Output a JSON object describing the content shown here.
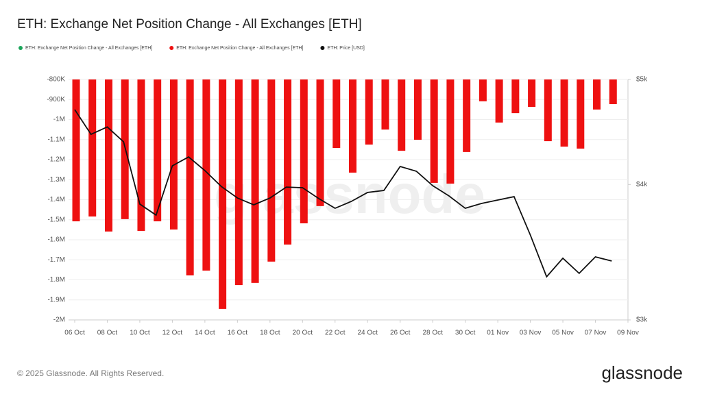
{
  "chart_data": {
    "type": "bar_line",
    "title": "ETH: Exchange Net Position Change - All Exchanges [ETH]",
    "categories": [
      "06 Oct",
      null,
      "08 Oct",
      null,
      "10 Oct",
      null,
      "12 Oct",
      null,
      "14 Oct",
      null,
      "16 Oct",
      null,
      "18 Oct",
      null,
      "20 Oct",
      null,
      "22 Oct",
      null,
      "24 Oct",
      null,
      "26 Oct",
      null,
      "28 Oct",
      null,
      "30 Oct",
      null,
      "01 Nov",
      null,
      "03 Nov",
      null,
      "05 Nov",
      null,
      "07 Nov",
      null,
      "09 Nov"
    ],
    "series": [
      {
        "name": "ETH: Exchange Net Position Change - All Exchanges [ETH]",
        "color": "#1aa55a",
        "type": "bar",
        "values": [
          null,
          null,
          null,
          null,
          null,
          null,
          null,
          null,
          null,
          null,
          null,
          null,
          null,
          null,
          null,
          null,
          null,
          null,
          null,
          null,
          null,
          null,
          null,
          null,
          null,
          null,
          null,
          null,
          null,
          null,
          null,
          null,
          null,
          null,
          null
        ]
      },
      {
        "name": "ETH: Exchange Net Position Change - All Exchanges [ETH]",
        "color": "#ee1111",
        "type": "bar",
        "values": [
          -1508000,
          -1484000,
          -1559000,
          -1497000,
          -1556000,
          -1508000,
          -1549000,
          -1778000,
          -1754000,
          -1945000,
          -1826000,
          -1815000,
          -1709000,
          -1624000,
          -1518000,
          -1432000,
          -1142000,
          -1265000,
          -1125000,
          -1050000,
          -1156000,
          -1101000,
          -1316000,
          -1320000,
          -1162000,
          -909000,
          -1015000,
          -968000,
          -937000,
          -1108000,
          -1135000,
          -1145000,
          -950000,
          -923000,
          null
        ]
      },
      {
        "name": "ETH: Price [USD]",
        "color": "#111111",
        "type": "line",
        "axis": "y2",
        "values": [
          4690,
          4450,
          4520,
          4380,
          3837,
          3748,
          4162,
          4241,
          4120,
          3984,
          3887,
          3831,
          3887,
          3978,
          3973,
          3882,
          3803,
          3859,
          3933,
          3950,
          4156,
          4114,
          3990,
          3904,
          3803,
          3842,
          3870,
          3898,
          3593,
          3288,
          3420,
          3312,
          3430,
          3400,
          null
        ]
      }
    ],
    "ylim": [
      -800000,
      -2000000
    ],
    "yticks": [
      {
        "value": -800000,
        "label": "-800K"
      },
      {
        "value": -900000,
        "label": "-900K"
      },
      {
        "value": -1000000,
        "label": "-1M"
      },
      {
        "value": -1100000,
        "label": "-1.1M"
      },
      {
        "value": -1200000,
        "label": "-1.2M"
      },
      {
        "value": -1300000,
        "label": "-1.3M"
      },
      {
        "value": -1400000,
        "label": "-1.4M"
      },
      {
        "value": -1500000,
        "label": "-1.5M"
      },
      {
        "value": -1600000,
        "label": "-1.6M"
      },
      {
        "value": -1700000,
        "label": "-1.7M"
      },
      {
        "value": -1800000,
        "label": "-1.8M"
      },
      {
        "value": -1900000,
        "label": "-1.9M"
      },
      {
        "value": -2000000,
        "label": "-2M"
      }
    ],
    "y2lim": [
      3000,
      5000
    ],
    "y2ticks": [
      {
        "value": 5000,
        "label": "$5k"
      },
      {
        "value": 4000,
        "label": "$4k"
      },
      {
        "value": 3000,
        "label": "$3k"
      }
    ],
    "y2log": true,
    "grid": true,
    "legend": "top-left",
    "watermark": "glassnode",
    "footer": "© 2025 Glassnode. All Rights Reserved.",
    "logo": "glassnode"
  }
}
